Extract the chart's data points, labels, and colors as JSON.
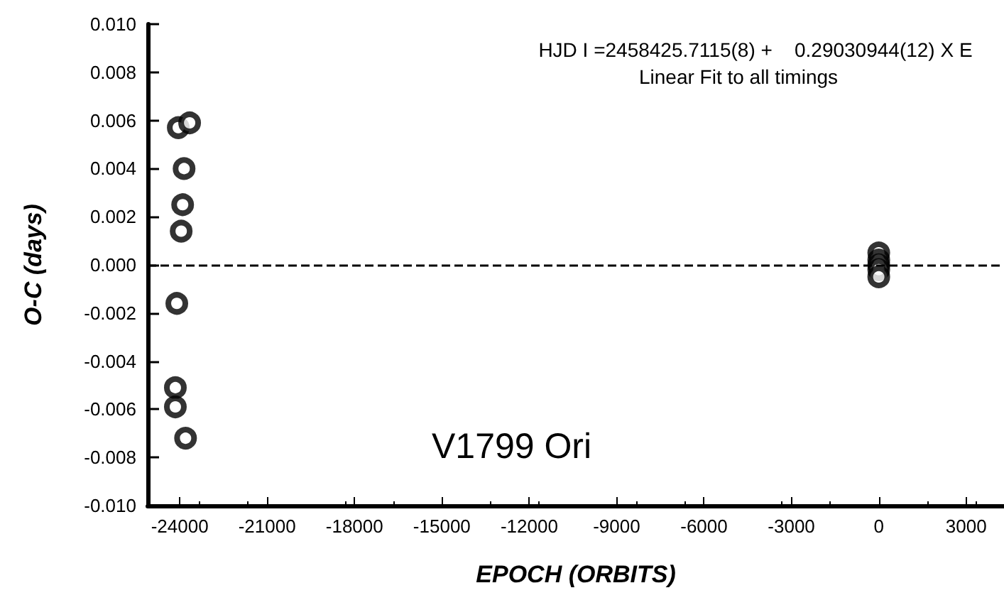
{
  "chart_data": {
    "type": "scatter",
    "xlabel": "EPOCH (ORBITS)",
    "ylabel": "O-C (days)",
    "annotations": [
      "HJD I =2458425.7115(8) +    0.29030944(12) X E",
      "Linear Fit to all timings",
      "V1799 Ori"
    ],
    "series": [
      {
        "color": "#000000",
        "x": [
          -24050,
          -23660,
          -23850,
          -23900,
          -23950,
          -24100,
          -24150,
          -24150,
          -23800,
          0,
          0,
          0,
          0,
          0
        ],
        "values": [
          0.0057,
          0.0059,
          0.004,
          0.0025,
          0.0014,
          -0.0016,
          -0.0051,
          -0.0059,
          -0.0072,
          0.0005,
          0.0002,
          0,
          -0.0002,
          -0.0005
        ]
      }
    ],
    "xlim": [
      -25100,
      4300
    ],
    "xticks": [
      -24000,
      -21000,
      -18000,
      -15000,
      -12000,
      -9000,
      -6000,
      -3000,
      0,
      3000
    ],
    "ylim": [
      -0.01,
      0.01
    ],
    "yticks": [
      {
        "value": -0.01,
        "label": "-0.010"
      },
      {
        "value": -0.008,
        "label": "-0.008"
      },
      {
        "value": -0.006,
        "label": "-0.006"
      },
      {
        "value": -0.004,
        "label": "-0.004"
      },
      {
        "value": -0.002,
        "label": "-0.002"
      },
      {
        "value": 0,
        "label": "0.000"
      },
      {
        "value": 0.002,
        "label": "0.002"
      },
      {
        "value": 0.004,
        "label": "0.004"
      },
      {
        "value": 0.006,
        "label": "0.006"
      },
      {
        "value": 0.008,
        "label": "0.008"
      },
      {
        "value": 0.01,
        "label": "0.010"
      }
    ],
    "ref_lines": [
      {
        "axis": "y",
        "value": 0,
        "line_style": "dashed",
        "color": "#000000"
      }
    ],
    "marker": "circle"
  }
}
